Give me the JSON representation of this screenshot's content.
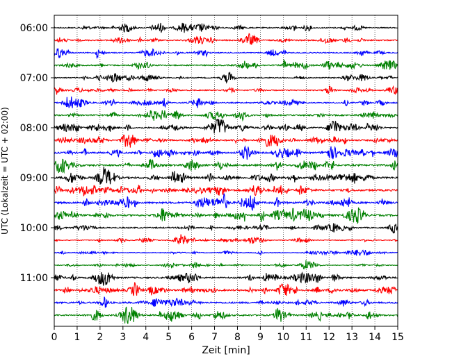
{
  "chart_data": {
    "type": "line",
    "title": "",
    "xlabel": "Zeit  [min]",
    "ylabel": "UTC (Lokalzeit = UTC + 02:00)",
    "xlim": [
      0,
      15
    ],
    "x_ticks": [
      "0",
      "1",
      "2",
      "3",
      "4",
      "5",
      "6",
      "7",
      "8",
      "9",
      "10",
      "11",
      "12",
      "13",
      "14",
      "15"
    ],
    "y_ticks": [
      "06:00",
      "07:00",
      "08:00",
      "09:00",
      "10:00",
      "11:00"
    ],
    "grid": "vertical dotted at each minute",
    "trace_interval_minutes": 15,
    "start_time": "06:00",
    "trace_colors": [
      "#000000",
      "#ff0000",
      "#0000ff",
      "#008000"
    ],
    "traces": [
      {
        "row": 0,
        "amplitude": 2.0,
        "events": []
      },
      {
        "row": 1,
        "amplitude": 2.2,
        "events": [
          {
            "x": 8.45,
            "amp": 7
          }
        ]
      },
      {
        "row": 2,
        "amplitude": 2.0,
        "events": [
          {
            "x": 1.85,
            "amp": 9
          }
        ]
      },
      {
        "row": 3,
        "amplitude": 2.2,
        "events": [
          {
            "x": 10.0,
            "amp": 10
          },
          {
            "x": 14.8,
            "amp": 7
          }
        ]
      },
      {
        "row": 4,
        "amplitude": 2.0,
        "events": []
      },
      {
        "row": 5,
        "amplitude": 2.0,
        "events": []
      },
      {
        "row": 6,
        "amplitude": 2.2,
        "events": []
      },
      {
        "row": 7,
        "amplitude": 2.5,
        "events": [
          {
            "x": 7.0,
            "amp": 5
          }
        ]
      },
      {
        "row": 8,
        "amplitude": 2.8,
        "events": [
          {
            "x": 10.0,
            "amp": 5
          }
        ]
      },
      {
        "row": 9,
        "amplitude": 2.8,
        "events": []
      },
      {
        "row": 10,
        "amplitude": 3.0,
        "events": [
          {
            "x": 5.6,
            "amp": 5
          }
        ]
      },
      {
        "row": 11,
        "amplitude": 3.5,
        "events": [
          {
            "x": 9.7,
            "amp": 5
          }
        ]
      },
      {
        "row": 12,
        "amplitude": 3.5,
        "events": [
          {
            "x": 1.0,
            "amp": 4
          }
        ]
      },
      {
        "row": 13,
        "amplitude": 3.5,
        "events": [
          {
            "x": 9.6,
            "amp": 6
          }
        ]
      },
      {
        "row": 14,
        "amplitude": 3.5,
        "events": [
          {
            "x": 9.65,
            "amp": 13
          },
          {
            "x": 7.4,
            "amp": 5
          }
        ]
      },
      {
        "row": 15,
        "amplitude": 3.5,
        "events": [
          {
            "x": 7.0,
            "amp": 5
          }
        ]
      },
      {
        "row": 16,
        "amplitude": 2.2,
        "events": []
      },
      {
        "row": 17,
        "amplitude": 1.5,
        "events": []
      },
      {
        "row": 18,
        "amplitude": 1.2,
        "events": []
      },
      {
        "row": 19,
        "amplitude": 1.5,
        "events": []
      },
      {
        "row": 20,
        "amplitude": 2.8,
        "events": [
          {
            "x": 4.9,
            "amp": 5
          }
        ]
      },
      {
        "row": 21,
        "amplitude": 3.2,
        "events": [
          {
            "x": 3.5,
            "amp": 7
          }
        ]
      },
      {
        "row": 22,
        "amplitude": 3.0,
        "events": [
          {
            "x": 4.4,
            "amp": 6
          }
        ]
      },
      {
        "row": 23,
        "amplitude": 3.0,
        "events": [
          {
            "x": 3.3,
            "amp": 5
          },
          {
            "x": 4.6,
            "amp": 5
          }
        ]
      }
    ]
  }
}
